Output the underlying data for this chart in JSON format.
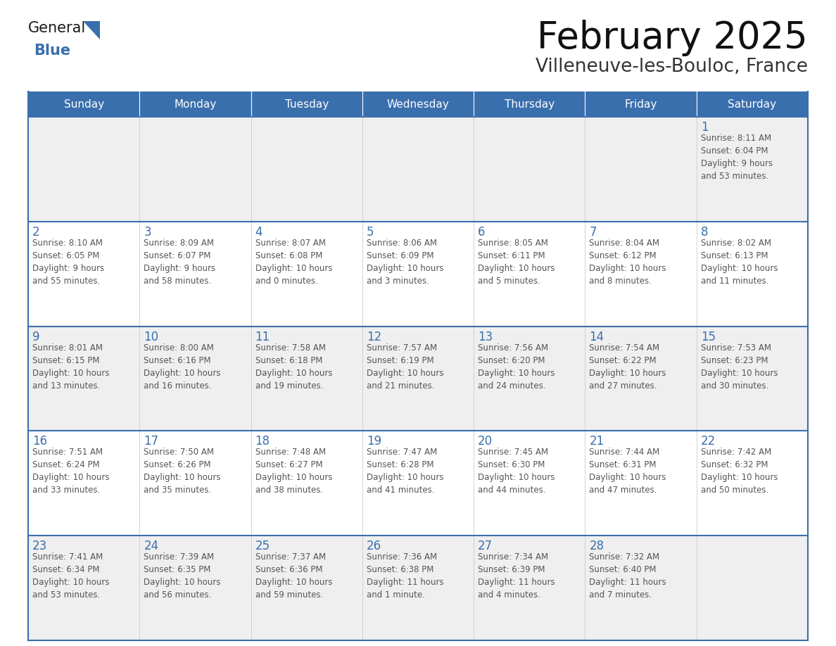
{
  "title": "February 2025",
  "subtitle": "Villeneuve-les-Bouloc, France",
  "days_of_week": [
    "Sunday",
    "Monday",
    "Tuesday",
    "Wednesday",
    "Thursday",
    "Friday",
    "Saturday"
  ],
  "header_bg": "#3a6fad",
  "header_text": "#ffffff",
  "row_bg_odd": "#efefef",
  "row_bg_even": "#ffffff",
  "border_color": "#3a6fad",
  "text_color": "#555555",
  "day_number_color": "#3a6fad",
  "logo_general_color": "#1a1a1a",
  "logo_blue_color": "#3a6fad",
  "calendar_data": [
    [
      {
        "day": null,
        "info": ""
      },
      {
        "day": null,
        "info": ""
      },
      {
        "day": null,
        "info": ""
      },
      {
        "day": null,
        "info": ""
      },
      {
        "day": null,
        "info": ""
      },
      {
        "day": null,
        "info": ""
      },
      {
        "day": 1,
        "info": "Sunrise: 8:11 AM\nSunset: 6:04 PM\nDaylight: 9 hours\nand 53 minutes."
      }
    ],
    [
      {
        "day": 2,
        "info": "Sunrise: 8:10 AM\nSunset: 6:05 PM\nDaylight: 9 hours\nand 55 minutes."
      },
      {
        "day": 3,
        "info": "Sunrise: 8:09 AM\nSunset: 6:07 PM\nDaylight: 9 hours\nand 58 minutes."
      },
      {
        "day": 4,
        "info": "Sunrise: 8:07 AM\nSunset: 6:08 PM\nDaylight: 10 hours\nand 0 minutes."
      },
      {
        "day": 5,
        "info": "Sunrise: 8:06 AM\nSunset: 6:09 PM\nDaylight: 10 hours\nand 3 minutes."
      },
      {
        "day": 6,
        "info": "Sunrise: 8:05 AM\nSunset: 6:11 PM\nDaylight: 10 hours\nand 5 minutes."
      },
      {
        "day": 7,
        "info": "Sunrise: 8:04 AM\nSunset: 6:12 PM\nDaylight: 10 hours\nand 8 minutes."
      },
      {
        "day": 8,
        "info": "Sunrise: 8:02 AM\nSunset: 6:13 PM\nDaylight: 10 hours\nand 11 minutes."
      }
    ],
    [
      {
        "day": 9,
        "info": "Sunrise: 8:01 AM\nSunset: 6:15 PM\nDaylight: 10 hours\nand 13 minutes."
      },
      {
        "day": 10,
        "info": "Sunrise: 8:00 AM\nSunset: 6:16 PM\nDaylight: 10 hours\nand 16 minutes."
      },
      {
        "day": 11,
        "info": "Sunrise: 7:58 AM\nSunset: 6:18 PM\nDaylight: 10 hours\nand 19 minutes."
      },
      {
        "day": 12,
        "info": "Sunrise: 7:57 AM\nSunset: 6:19 PM\nDaylight: 10 hours\nand 21 minutes."
      },
      {
        "day": 13,
        "info": "Sunrise: 7:56 AM\nSunset: 6:20 PM\nDaylight: 10 hours\nand 24 minutes."
      },
      {
        "day": 14,
        "info": "Sunrise: 7:54 AM\nSunset: 6:22 PM\nDaylight: 10 hours\nand 27 minutes."
      },
      {
        "day": 15,
        "info": "Sunrise: 7:53 AM\nSunset: 6:23 PM\nDaylight: 10 hours\nand 30 minutes."
      }
    ],
    [
      {
        "day": 16,
        "info": "Sunrise: 7:51 AM\nSunset: 6:24 PM\nDaylight: 10 hours\nand 33 minutes."
      },
      {
        "day": 17,
        "info": "Sunrise: 7:50 AM\nSunset: 6:26 PM\nDaylight: 10 hours\nand 35 minutes."
      },
      {
        "day": 18,
        "info": "Sunrise: 7:48 AM\nSunset: 6:27 PM\nDaylight: 10 hours\nand 38 minutes."
      },
      {
        "day": 19,
        "info": "Sunrise: 7:47 AM\nSunset: 6:28 PM\nDaylight: 10 hours\nand 41 minutes."
      },
      {
        "day": 20,
        "info": "Sunrise: 7:45 AM\nSunset: 6:30 PM\nDaylight: 10 hours\nand 44 minutes."
      },
      {
        "day": 21,
        "info": "Sunrise: 7:44 AM\nSunset: 6:31 PM\nDaylight: 10 hours\nand 47 minutes."
      },
      {
        "day": 22,
        "info": "Sunrise: 7:42 AM\nSunset: 6:32 PM\nDaylight: 10 hours\nand 50 minutes."
      }
    ],
    [
      {
        "day": 23,
        "info": "Sunrise: 7:41 AM\nSunset: 6:34 PM\nDaylight: 10 hours\nand 53 minutes."
      },
      {
        "day": 24,
        "info": "Sunrise: 7:39 AM\nSunset: 6:35 PM\nDaylight: 10 hours\nand 56 minutes."
      },
      {
        "day": 25,
        "info": "Sunrise: 7:37 AM\nSunset: 6:36 PM\nDaylight: 10 hours\nand 59 minutes."
      },
      {
        "day": 26,
        "info": "Sunrise: 7:36 AM\nSunset: 6:38 PM\nDaylight: 11 hours\nand 1 minute."
      },
      {
        "day": 27,
        "info": "Sunrise: 7:34 AM\nSunset: 6:39 PM\nDaylight: 11 hours\nand 4 minutes."
      },
      {
        "day": 28,
        "info": "Sunrise: 7:32 AM\nSunset: 6:40 PM\nDaylight: 11 hours\nand 7 minutes."
      },
      {
        "day": null,
        "info": ""
      }
    ]
  ]
}
